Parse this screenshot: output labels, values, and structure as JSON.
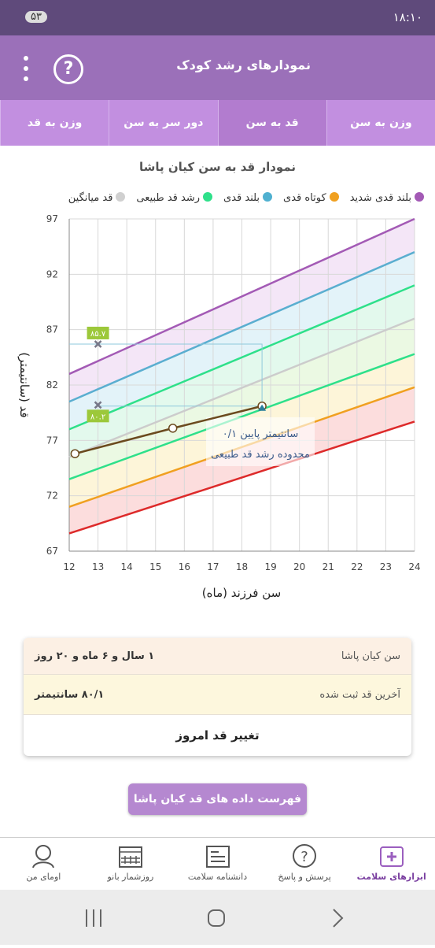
{
  "status_bar": {
    "battery": "۵۳",
    "time": "۱۸:۱۰"
  },
  "header": {
    "title": "نمودارهای رشد کودک"
  },
  "tabs": [
    "وزن به سن",
    "قد به سن",
    "دور سر به سن",
    "وزن به قد"
  ],
  "chart_data": {
    "type": "line",
    "title": "نمودار قد به سن کیان پاشا",
    "legend": [
      {
        "name": "بلند قدی شدید",
        "color": "#a35ab5"
      },
      {
        "name": "کوتاه قدی",
        "color": "#f0a020"
      },
      {
        "name": "بلند قدی",
        "color": "#4fb0d0"
      },
      {
        "name": "رشد قد طبیعی",
        "color": "#2ee08a"
      },
      {
        "name": "قد میانگین",
        "color": "#d0d0d0"
      }
    ],
    "x_label": "سن فرزند (ماه)",
    "y_label": "قد (سانتیمتر)",
    "xlim": [
      12,
      24
    ],
    "xticks": [
      12,
      13,
      14,
      15,
      16,
      17,
      18,
      19,
      20,
      21,
      22,
      23,
      24
    ],
    "ylim": [
      67,
      97
    ],
    "yticks": [
      67,
      72,
      77,
      82,
      87,
      92,
      97
    ],
    "grid": true,
    "x": [
      12,
      24
    ],
    "series": [
      {
        "color": "#a35ab5",
        "values": [
          83.0,
          97.0
        ]
      },
      {
        "color": "#5aaed0",
        "values": [
          80.5,
          94.0
        ]
      },
      {
        "color": "#2ee08a",
        "values": [
          78.0,
          91.0
        ]
      },
      {
        "color": "#cccccc",
        "values": [
          75.5,
          88.0
        ]
      },
      {
        "color": "#2ee08a",
        "values": [
          73.5,
          84.8
        ]
      },
      {
        "color": "#f0a020",
        "values": [
          71.0,
          81.8
        ]
      },
      {
        "color": "#dd2a2a",
        "values": [
          68.6,
          78.7
        ]
      }
    ],
    "child": {
      "color": "#6b4a1e",
      "x": [
        12.2,
        15.6,
        18.7
      ],
      "values": [
        75.8,
        78.1,
        80.1
      ]
    },
    "markers": [
      {
        "x": 13,
        "value": 85.7,
        "label": "۸۵.۷"
      },
      {
        "x": 13,
        "value": 80.2,
        "label": "۸۰.۲"
      }
    ],
    "annotation": [
      "۰/۱ سانتیمتر پایین",
      "محدوده رشد قد طبیعی"
    ]
  },
  "info": {
    "rows": [
      [
        "سن کیان پاشا",
        "۱ سال و ۶ ماه و ۲۰ روز"
      ],
      [
        "آخرین قد ثبت شده",
        "۸۰/۱ سانتیمتر"
      ]
    ],
    "button": "تغییر قد امروز"
  },
  "list_button": "فهرست داده های قد کیان پاشا",
  "nav": [
    "ابزارهای سلامت",
    "پرسش و پاسخ",
    "دانشنامه سلامت",
    "روزشمار بانو",
    "اومای من"
  ]
}
